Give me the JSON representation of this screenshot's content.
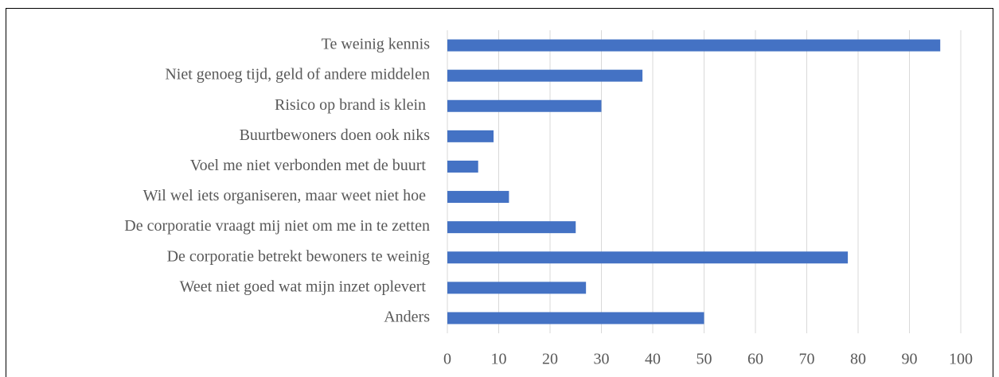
{
  "chart_data": {
    "type": "bar",
    "orientation": "horizontal",
    "categories": [
      "Te weinig kennis",
      "Niet genoeg tijd, geld of andere middelen",
      "Risico op brand is klein ",
      "Buurtbewoners doen ook niks",
      "Voel me niet verbonden met de buurt ",
      "Wil wel iets organiseren, maar weet niet hoe ",
      "De corporatie vraagt mij niet om me in te zetten",
      "De corporatie betrekt bewoners te weinig",
      "Weet niet goed wat mijn inzet oplevert ",
      "Anders"
    ],
    "values": [
      96,
      38,
      30,
      9,
      6,
      12,
      25,
      78,
      27,
      50
    ],
    "color": "#4472c4",
    "xlim": [
      0,
      100
    ],
    "xticks": [
      0,
      10,
      20,
      30,
      40,
      50,
      60,
      70,
      80,
      90,
      100
    ],
    "grid": true
  }
}
